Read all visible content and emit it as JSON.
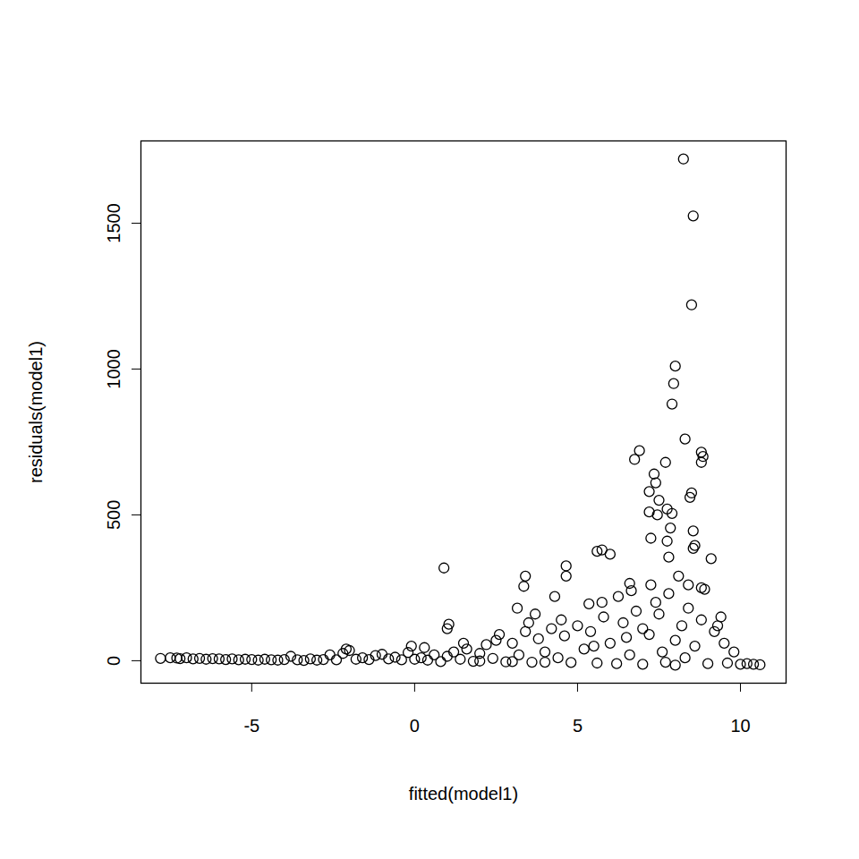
{
  "chart_data": {
    "type": "scatter",
    "x_label": "fitted(model1)",
    "y_label": "residuals(model1)",
    "marker": "open_circle",
    "color": "#000000",
    "xlim": [
      -8.4,
      11.4
    ],
    "ylim": [
      -77,
      1782
    ],
    "xticks": [
      -5,
      0,
      5,
      10
    ],
    "yticks": [
      0,
      500,
      1000,
      1500
    ],
    "x": [
      -7.8,
      -7.5,
      -7.3,
      -7.2,
      -7.0,
      -6.8,
      -6.6,
      -6.4,
      -6.2,
      -6.0,
      -5.8,
      -5.6,
      -5.4,
      -5.2,
      -5.0,
      -4.8,
      -4.6,
      -4.4,
      -4.2,
      -4.0,
      -3.8,
      -3.6,
      -3.4,
      -3.2,
      -3.0,
      -2.8,
      -2.6,
      -2.4,
      -2.2,
      -2.0,
      -1.8,
      -1.6,
      -1.4,
      -1.2,
      -1.0,
      -0.8,
      -0.6,
      -0.4,
      -0.2,
      0.0,
      0.2,
      0.4,
      0.6,
      0.8,
      1.0,
      1.2,
      1.4,
      1.6,
      1.8,
      2.0,
      2.2,
      2.4,
      2.6,
      2.8,
      3.0,
      3.2,
      3.4,
      3.6,
      3.8,
      4.0,
      4.2,
      4.4,
      4.6,
      4.8,
      5.0,
      1.5,
      2.5,
      3.5,
      4.5,
      3.0,
      4.0,
      2.0,
      5.2,
      5.4,
      5.6,
      5.8,
      6.0,
      6.2,
      6.4,
      6.6,
      6.8,
      7.0,
      7.2,
      7.4,
      7.6,
      7.8,
      8.0,
      8.2,
      8.4,
      8.6,
      8.8,
      9.0,
      9.2,
      9.4,
      9.6,
      9.8,
      10.0,
      10.2,
      10.4,
      10.6,
      7.0,
      7.5,
      8.0,
      6.5,
      5.5,
      9.3,
      9.5,
      8.3,
      7.7,
      8.25,
      8.55,
      8.5,
      8.0,
      7.95,
      7.9,
      8.3,
      8.8,
      8.85,
      8.8,
      6.9,
      6.75,
      7.7,
      7.35,
      7.4,
      7.2,
      8.5,
      8.45,
      7.5,
      7.2,
      7.75,
      7.9,
      7.45,
      8.55,
      7.85,
      7.25,
      8.6,
      8.55,
      7.75,
      7.8,
      5.6,
      5.75,
      6.0,
      9.1,
      4.65,
      0.9,
      3.4,
      4.65,
      3.35,
      8.1,
      8.4,
      6.6,
      6.65,
      7.25,
      8.8,
      8.9,
      4.3,
      6.25,
      3.15,
      3.7,
      5.35,
      5.75,
      1.05,
      1.0,
      -2.1,
      -0.1,
      0.3
    ],
    "values": [
      8,
      10,
      9,
      7,
      10,
      6,
      8,
      5,
      7,
      6,
      4,
      6,
      3,
      5,
      4,
      2,
      5,
      3,
      2,
      4,
      15,
      3,
      1,
      6,
      2,
      4,
      20,
      3,
      25,
      35,
      5,
      10,
      4,
      18,
      22,
      6,
      12,
      3,
      28,
      5,
      10,
      2,
      20,
      -3,
      15,
      30,
      5,
      40,
      -2,
      25,
      55,
      8,
      90,
      -4,
      60,
      20,
      100,
      -5,
      75,
      30,
      110,
      10,
      85,
      -6,
      120,
      60,
      70,
      130,
      140,
      -3,
      -5,
      -1,
      40,
      100,
      -8,
      150,
      60,
      -10,
      130,
      20,
      170,
      -12,
      90,
      200,
      30,
      230,
      -15,
      120,
      180,
      50,
      140,
      -10,
      100,
      150,
      -8,
      30,
      -12,
      -10,
      -12,
      -14,
      110,
      160,
      70,
      80,
      50,
      120,
      60,
      10,
      -5,
      1720,
      1525,
      1220,
      1010,
      950,
      880,
      760,
      715,
      700,
      680,
      720,
      690,
      680,
      640,
      610,
      580,
      575,
      560,
      550,
      510,
      520,
      505,
      500,
      445,
      455,
      420,
      395,
      385,
      410,
      355,
      375,
      380,
      365,
      350,
      325,
      318,
      290,
      290,
      255,
      290,
      260,
      265,
      240,
      260,
      250,
      245,
      220,
      220,
      180,
      160,
      195,
      200,
      125,
      110,
      40,
      50,
      45
    ]
  }
}
